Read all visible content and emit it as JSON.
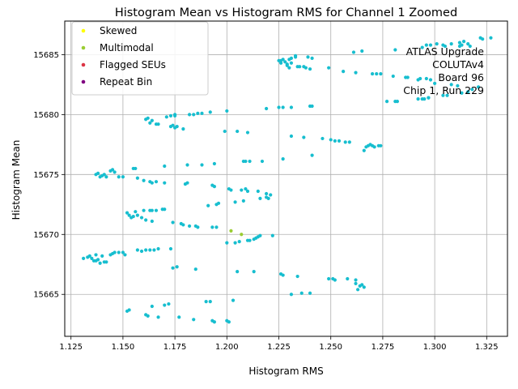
{
  "chart_data": {
    "type": "scatter",
    "title": "Histogram Mean vs Histogram RMS for Channel 1 Zoomed",
    "xlabel": "Histogram RMS",
    "ylabel": "Histogram Mean",
    "xlim": [
      1.122,
      1.335
    ],
    "ylim": [
      15661.5,
      15687.8
    ],
    "x_ticks": [
      "1.125",
      "1.150",
      "1.175",
      "1.200",
      "1.225",
      "1.250",
      "1.275",
      "1.300",
      "1.325"
    ],
    "y_ticks": [
      "15665",
      "15670",
      "15675",
      "15680",
      "15685"
    ],
    "grid": true,
    "legend_position": "top-left",
    "annotation": [
      "ATLAS Upgrade",
      "COLUTAv4",
      "Board 96",
      "Chip 1, Run 229"
    ],
    "series": [
      {
        "name": "Skewed",
        "color": "#ffff00",
        "x": [],
        "y": []
      },
      {
        "name": "Multimodal",
        "color": "#9acd32",
        "x": [
          1.202,
          1.207
        ],
        "y": [
          15670.3,
          15670.0
        ]
      },
      {
        "name": "Flagged SEUs",
        "color": "#dc3545",
        "x": [],
        "y": []
      },
      {
        "name": "Repeat Bin",
        "color": "#800080",
        "x": [],
        "y": []
      },
      {
        "name": "",
        "color": "#17becf",
        "x": [
          1.225,
          1.226,
          1.228,
          1.229,
          1.23,
          1.231,
          1.233,
          1.234,
          1.237,
          1.239,
          1.241,
          1.233,
          1.235,
          1.238,
          1.24,
          1.23,
          1.231,
          1.226,
          1.227,
          1.229,
          1.249,
          1.256,
          1.262,
          1.265,
          1.261,
          1.27,
          1.272,
          1.274,
          1.28,
          1.281,
          1.286,
          1.287,
          1.292,
          1.293,
          1.296,
          1.298,
          1.294,
          1.296,
          1.298,
          1.301,
          1.304,
          1.305,
          1.308,
          1.312,
          1.313,
          1.316,
          1.317,
          1.312,
          1.314,
          1.292,
          1.295,
          1.297,
          1.3,
          1.304,
          1.306,
          1.308,
          1.311,
          1.313,
          1.316,
          1.318,
          1.321,
          1.322,
          1.323,
          1.327,
          1.282,
          1.277,
          1.281,
          1.294,
          1.297,
          1.231,
          1.225,
          1.219,
          1.227,
          1.24,
          1.241,
          1.2,
          1.192,
          1.188,
          1.186,
          1.184,
          1.182,
          1.175,
          1.175,
          1.161,
          1.162,
          1.164,
          1.166,
          1.167,
          1.163,
          1.171,
          1.173,
          1.174,
          1.176,
          1.179,
          1.173,
          1.175,
          1.205,
          1.21,
          1.199,
          1.231,
          1.237,
          1.246,
          1.25,
          1.252,
          1.254,
          1.257,
          1.259,
          1.266,
          1.267,
          1.268,
          1.269,
          1.271,
          1.273,
          1.274,
          1.27,
          1.241,
          1.227,
          1.217,
          1.211,
          1.209,
          1.208,
          1.194,
          1.188,
          1.181,
          1.17,
          1.155,
          1.156,
          1.137,
          1.138,
          1.139,
          1.14,
          1.141,
          1.142,
          1.144,
          1.146,
          1.148,
          1.15,
          1.145,
          1.157,
          1.16,
          1.163,
          1.164,
          1.166,
          1.17,
          1.181,
          1.18,
          1.193,
          1.194,
          1.201,
          1.202,
          1.207,
          1.21,
          1.209,
          1.215,
          1.216,
          1.219,
          1.22,
          1.221,
          1.219,
          1.191,
          1.195,
          1.196,
          1.204,
          1.208,
          1.152,
          1.153,
          1.154,
          1.155,
          1.156,
          1.157,
          1.159,
          1.16,
          1.163,
          1.164,
          1.166,
          1.169,
          1.17,
          1.161,
          1.164,
          1.174,
          1.178,
          1.179,
          1.182,
          1.185,
          1.186,
          1.193,
          1.195,
          1.206,
          1.21,
          1.211,
          1.213,
          1.214,
          1.215,
          1.216,
          1.222,
          1.2,
          1.204,
          1.131,
          1.133,
          1.134,
          1.135,
          1.136,
          1.137,
          1.138,
          1.14,
          1.141,
          1.142,
          1.144,
          1.145,
          1.146,
          1.148,
          1.15,
          1.151,
          1.137,
          1.139,
          1.157,
          1.159,
          1.161,
          1.163,
          1.165,
          1.167,
          1.173,
          1.176,
          1.174,
          1.185,
          1.205,
          1.213,
          1.226,
          1.227,
          1.234,
          1.249,
          1.251,
          1.252,
          1.258,
          1.262,
          1.262,
          1.264,
          1.265,
          1.266,
          1.263,
          1.236,
          1.231,
          1.24,
          1.152,
          1.153,
          1.164,
          1.167,
          1.17,
          1.172,
          1.177,
          1.184,
          1.19,
          1.192,
          1.193,
          1.194,
          1.2,
          1.201,
          1.203,
          1.162,
          1.161
        ],
        "y": [
          15684.5,
          15684.3,
          15684.4,
          15684.2,
          15684.6,
          15684.7,
          15684.8,
          15684.0,
          15684.0,
          15684.8,
          15684.7,
          15684.9,
          15684.0,
          15683.9,
          15683.8,
          15683.9,
          15684.3,
          15684.5,
          15684.6,
          15684.1,
          15683.9,
          15683.6,
          15683.5,
          15685.3,
          15685.2,
          15683.4,
          15683.4,
          15683.4,
          15683.2,
          15685.4,
          15683.1,
          15683.1,
          15682.9,
          15683.0,
          15683.0,
          15682.9,
          15685.6,
          15685.8,
          15685.8,
          15685.9,
          15685.8,
          15685.7,
          15685.9,
          15685.7,
          15685.8,
          15685.9,
          15685.7,
          15686.0,
          15686.1,
          15681.3,
          15681.3,
          15681.4,
          15682.6,
          15681.6,
          15681.6,
          15682.5,
          15682.4,
          15681.8,
          15681.9,
          15682.1,
          15682.3,
          15686.4,
          15686.3,
          15686.4,
          15681.1,
          15681.1,
          15681.1,
          15681.3,
          15681.4,
          15680.6,
          15680.6,
          15680.5,
          15680.6,
          15680.7,
          15680.7,
          15680.3,
          15680.2,
          15680.1,
          15680.1,
          15680.0,
          15680.0,
          15680.0,
          15679.9,
          15679.6,
          15679.7,
          15679.5,
          15679.2,
          15679.2,
          15679.3,
          15679.8,
          15679.9,
          15679.1,
          15679.0,
          15678.8,
          15679.0,
          15678.9,
          15678.6,
          15678.5,
          15678.6,
          15678.2,
          15678.1,
          15678.0,
          15677.9,
          15677.8,
          15677.8,
          15677.7,
          15677.7,
          15677.0,
          15677.3,
          15677.4,
          15677.5,
          15677.3,
          15677.4,
          15677.4,
          15677.4,
          15676.6,
          15676.3,
          15676.1,
          15676.1,
          15676.1,
          15676.1,
          15675.9,
          15675.8,
          15675.8,
          15675.7,
          15675.5,
          15675.5,
          15675.0,
          15675.1,
          15674.8,
          15674.9,
          15675.0,
          15674.8,
          15675.3,
          15675.2,
          15674.8,
          15674.8,
          15675.4,
          15674.7,
          15674.5,
          15674.4,
          15674.3,
          15674.4,
          15674.3,
          15674.3,
          15674.2,
          15674.1,
          15674.0,
          15673.8,
          15673.7,
          15673.7,
          15673.6,
          15673.8,
          15673.6,
          15673.0,
          15673.1,
          15673.0,
          15673.3,
          15673.4,
          15672.4,
          15672.5,
          15672.6,
          15672.7,
          15672.8,
          15671.8,
          15671.6,
          15671.4,
          15671.5,
          15671.9,
          15671.6,
          15671.4,
          15672.0,
          15672.0,
          15672.0,
          15672.0,
          15672.1,
          15672.1,
          15671.2,
          15671.1,
          15671.0,
          15670.9,
          15670.8,
          15670.7,
          15670.7,
          15670.6,
          15670.6,
          15670.6,
          15669.4,
          15669.5,
          15669.5,
          15669.6,
          15669.7,
          15669.8,
          15669.9,
          15669.9,
          15669.3,
          15669.3,
          15668.0,
          15668.1,
          15668.2,
          15668.0,
          15667.8,
          15668.3,
          15667.9,
          15668.2,
          15667.7,
          15667.7,
          15668.3,
          15668.4,
          15668.5,
          15668.5,
          15668.5,
          15668.3,
          15667.8,
          15667.6,
          15668.7,
          15668.6,
          15668.7,
          15668.7,
          15668.7,
          15668.8,
          15668.8,
          15667.3,
          15667.2,
          15667.1,
          15666.9,
          15666.9,
          15666.7,
          15666.6,
          15666.5,
          15666.3,
          15666.3,
          15666.2,
          15666.3,
          15666.2,
          15665.9,
          15665.7,
          15665.8,
          15665.6,
          15665.4,
          15665.1,
          15665.0,
          15665.1,
          15663.6,
          15663.7,
          15664.0,
          15663.1,
          15664.1,
          15664.2,
          15663.1,
          15662.9,
          15664.4,
          15664.4,
          15662.8,
          15662.7,
          15662.8,
          15662.7,
          15664.5,
          15663.2,
          15663.3
        ]
      }
    ]
  }
}
